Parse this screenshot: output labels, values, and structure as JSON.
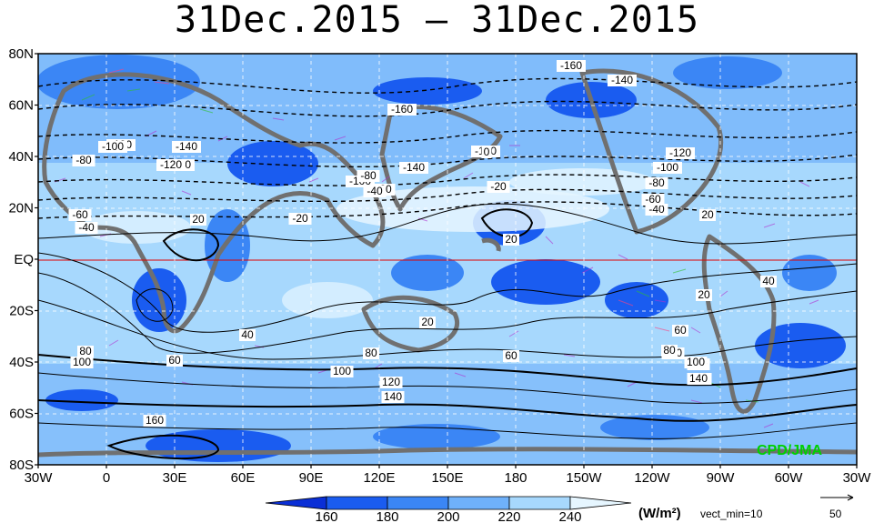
{
  "title": "31Dec.2015 – 31Dec.2015",
  "lat_labels": [
    "80N",
    "60N",
    "40N",
    "20N",
    "EQ",
    "20S",
    "40S",
    "60S",
    "80S"
  ],
  "lon_labels": [
    "30W",
    "0",
    "30E",
    "60E",
    "90E",
    "120E",
    "150E",
    "180",
    "150W",
    "120W",
    "90W",
    "60W",
    "30W"
  ],
  "contour_labels": [
    "-160",
    "-140",
    "-160",
    "-120",
    "-140",
    "-120",
    "-100",
    "-80",
    "-100",
    "-120",
    "-140",
    "-100",
    "-80",
    "-60",
    "-40",
    "-20",
    "0",
    "-20",
    "-40",
    "-60",
    "-80",
    "-100",
    "-120",
    "-60",
    "-40",
    "20",
    "20",
    "20",
    "40",
    "60",
    "80",
    "100",
    "120",
    "140",
    "160",
    "20",
    "40",
    "60",
    "80",
    "100",
    "120",
    "140",
    "20",
    "40",
    "60",
    "80",
    "100",
    "120",
    "140"
  ],
  "colorbar": {
    "ticks": [
      "160",
      "180",
      "200",
      "220",
      "240"
    ],
    "units": "(W/m²)",
    "vector_min": "vect_min=10",
    "ref_vector": "50",
    "colors": [
      "#0a2fd6",
      "#1a5cf0",
      "#3b86f5",
      "#6fb1fa",
      "#a7d8fd",
      "#e6f6ff"
    ]
  },
  "credit": "CPD/JMA",
  "colors": {
    "frame": "#000000",
    "land": "#707070",
    "equator": "#e00000"
  }
}
